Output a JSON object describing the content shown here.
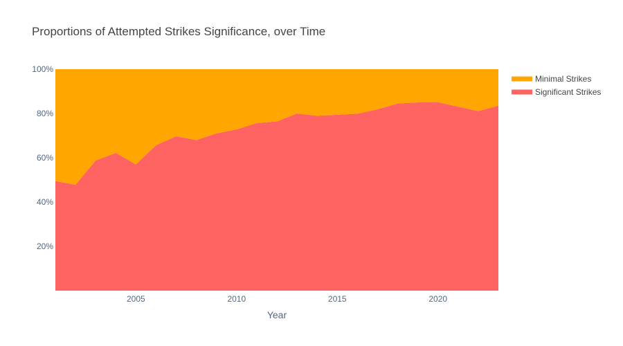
{
  "chart_data": {
    "type": "area",
    "stacked": "percent",
    "title": "Proportions of Attempted Strikes Significance, over Time",
    "xlabel": "Year",
    "ylabel": "",
    "x": [
      2001,
      2002,
      2003,
      2004,
      2005,
      2006,
      2007,
      2008,
      2009,
      2010,
      2011,
      2012,
      2013,
      2014,
      2015,
      2016,
      2017,
      2018,
      2019,
      2020,
      2021,
      2022,
      2023
    ],
    "xlim": [
      2001,
      2023
    ],
    "ylim": [
      0,
      100
    ],
    "x_ticks": [
      2005,
      2010,
      2015,
      2020
    ],
    "y_ticks": [
      20,
      40,
      60,
      80,
      100
    ],
    "y_tick_suffix": "%",
    "grid": false,
    "legend_position": "top-right",
    "series": [
      {
        "name": "Significant Strikes",
        "color": "#ff6361",
        "values": [
          49.5,
          47.8,
          58.8,
          62.2,
          57.0,
          65.7,
          69.7,
          68.0,
          71.0,
          72.8,
          75.7,
          76.4,
          80.0,
          79.0,
          79.4,
          79.9,
          81.9,
          84.5,
          85.0,
          85.1,
          83.1,
          81.1,
          83.5
        ]
      },
      {
        "name": "Minimal Strikes",
        "color": "#ffa600",
        "values": [
          50.5,
          52.2,
          41.2,
          37.8,
          43.0,
          34.3,
          30.3,
          32.0,
          29.0,
          27.2,
          24.3,
          23.6,
          20.0,
          21.0,
          20.6,
          20.1,
          18.1,
          15.5,
          15.0,
          14.9,
          16.9,
          18.9,
          16.5
        ]
      }
    ],
    "legend_order": [
      "Minimal Strikes",
      "Significant Strikes"
    ]
  }
}
